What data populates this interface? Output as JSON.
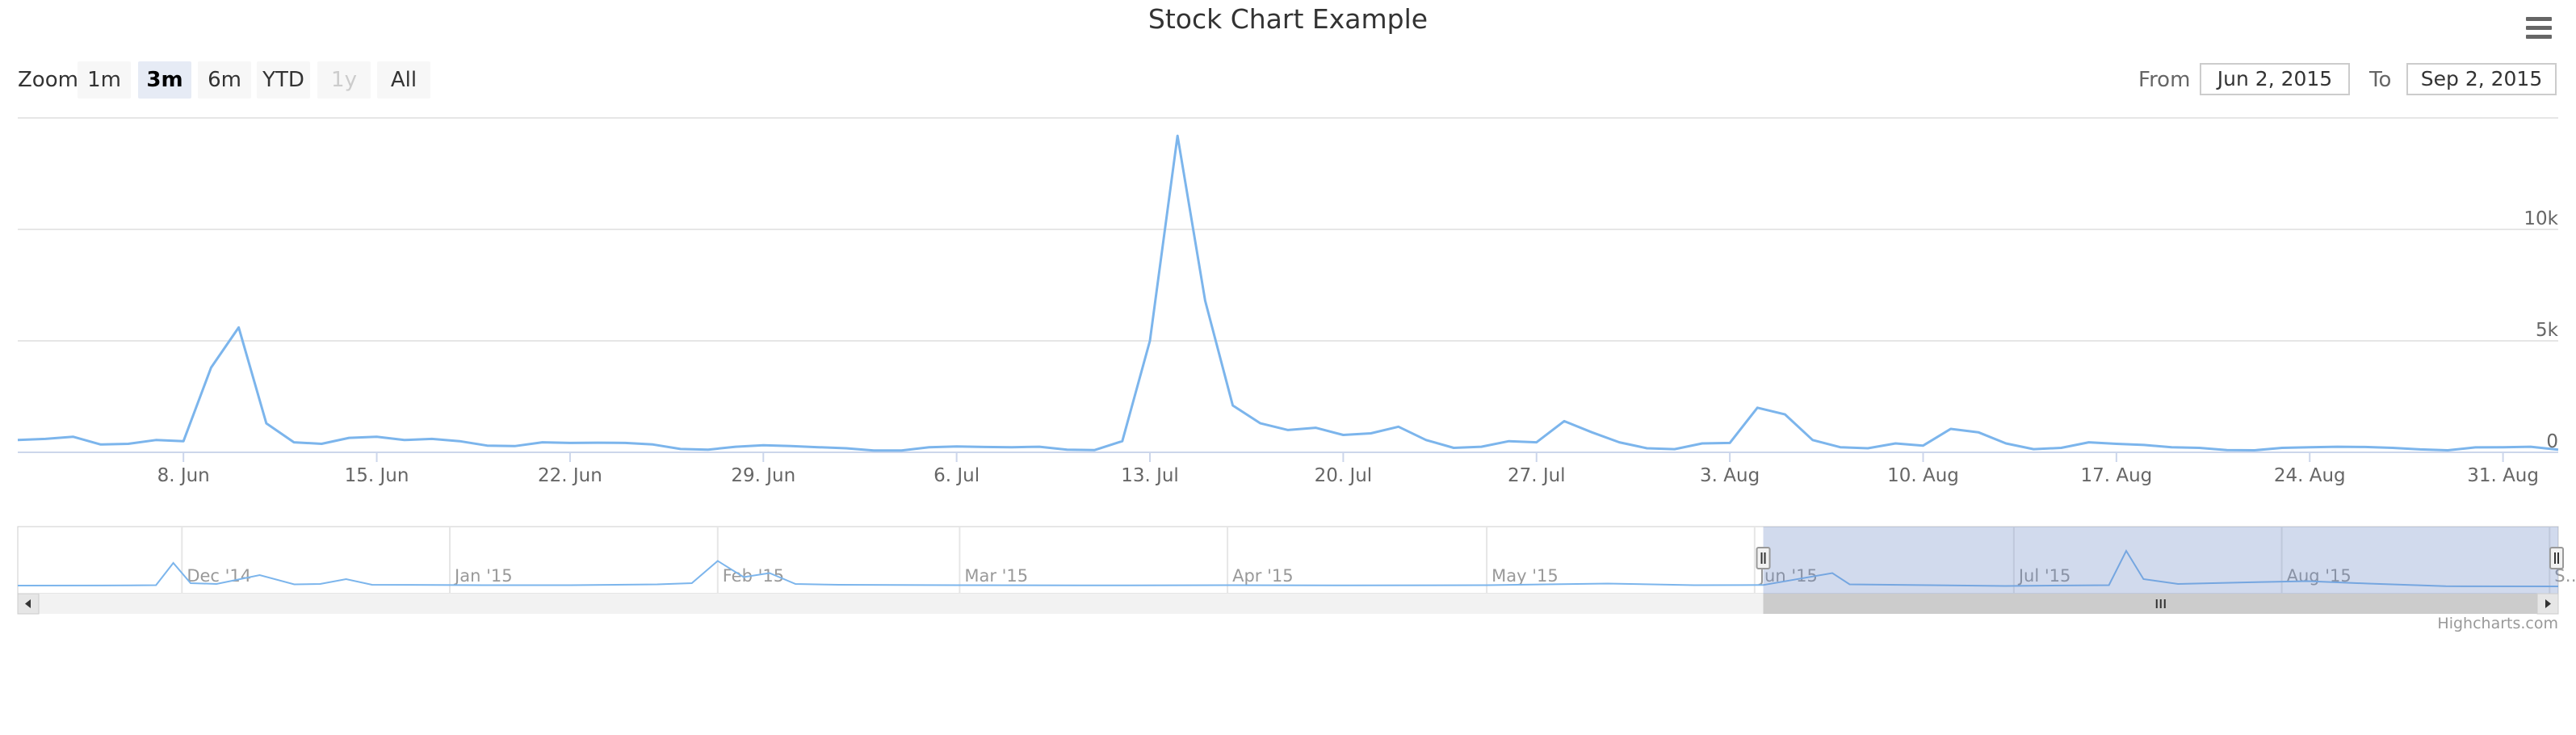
{
  "title": "Stock Chart Example",
  "range_selector": {
    "zoom_label": "Zoom",
    "buttons": [
      {
        "label": "1m",
        "state": "normal"
      },
      {
        "label": "3m",
        "state": "active"
      },
      {
        "label": "6m",
        "state": "normal"
      },
      {
        "label": "YTD",
        "state": "normal"
      },
      {
        "label": "1y",
        "state": "disabled"
      },
      {
        "label": "All",
        "state": "normal"
      }
    ],
    "from_label": "From",
    "from_value": "Jun 2, 2015",
    "to_label": "To",
    "to_value": "Sep 2, 2015"
  },
  "credits": "Highcharts.com",
  "colors": {
    "series": "#7cb5ec",
    "grid": "#e6e6e6",
    "navigator_mask": "rgba(102,133,194,0.3)",
    "scrollbar_track": "#f2f2f2",
    "scrollbar_thumb": "#cccccc"
  },
  "chart_data": {
    "type": "line",
    "title": "Stock Chart Example",
    "xlabel": "",
    "ylabel": "",
    "ylim": [
      0,
      15000
    ],
    "y_ticks": [
      0,
      5000,
      10000
    ],
    "y_tick_labels": [
      "0",
      "5k",
      "10k"
    ],
    "x_ticks": [
      {
        "date": "2015-06-08",
        "label": "8. Jun"
      },
      {
        "date": "2015-06-15",
        "label": "15. Jun"
      },
      {
        "date": "2015-06-22",
        "label": "22. Jun"
      },
      {
        "date": "2015-06-29",
        "label": "29. Jun"
      },
      {
        "date": "2015-07-06",
        "label": "6. Jul"
      },
      {
        "date": "2015-07-13",
        "label": "13. Jul"
      },
      {
        "date": "2015-07-20",
        "label": "20. Jul"
      },
      {
        "date": "2015-07-27",
        "label": "27. Jul"
      },
      {
        "date": "2015-08-03",
        "label": "3. Aug"
      },
      {
        "date": "2015-08-10",
        "label": "10. Aug"
      },
      {
        "date": "2015-08-17",
        "label": "17. Aug"
      },
      {
        "date": "2015-08-24",
        "label": "24. Aug"
      },
      {
        "date": "2015-08-31",
        "label": "31. Aug"
      }
    ],
    "xlim": [
      "2015-06-02",
      "2015-09-02"
    ],
    "grid": true,
    "legend": "none",
    "series": [
      {
        "points": [
          [
            "2015-06-02",
            550
          ],
          [
            "2015-06-03",
            600
          ],
          [
            "2015-06-04",
            700
          ],
          [
            "2015-06-05",
            350
          ],
          [
            "2015-06-06",
            380
          ],
          [
            "2015-06-07",
            550
          ],
          [
            "2015-06-08",
            500
          ],
          [
            "2015-06-09",
            3800
          ],
          [
            "2015-06-10",
            5600
          ],
          [
            "2015-06-11",
            1300
          ],
          [
            "2015-06-12",
            450
          ],
          [
            "2015-06-13",
            380
          ],
          [
            "2015-06-14",
            650
          ],
          [
            "2015-06-15",
            700
          ],
          [
            "2015-06-16",
            550
          ],
          [
            "2015-06-17",
            600
          ],
          [
            "2015-06-18",
            500
          ],
          [
            "2015-06-19",
            300
          ],
          [
            "2015-06-20",
            280
          ],
          [
            "2015-06-21",
            450
          ],
          [
            "2015-06-22",
            420
          ],
          [
            "2015-06-23",
            430
          ],
          [
            "2015-06-24",
            420
          ],
          [
            "2015-06-25",
            350
          ],
          [
            "2015-06-26",
            150
          ],
          [
            "2015-06-27",
            120
          ],
          [
            "2015-06-28",
            250
          ],
          [
            "2015-06-29",
            320
          ],
          [
            "2015-06-30",
            280
          ],
          [
            "2015-07-01",
            230
          ],
          [
            "2015-07-02",
            180
          ],
          [
            "2015-07-03",
            80
          ],
          [
            "2015-07-04",
            80
          ],
          [
            "2015-07-05",
            230
          ],
          [
            "2015-07-06",
            260
          ],
          [
            "2015-07-07",
            240
          ],
          [
            "2015-07-08",
            230
          ],
          [
            "2015-07-09",
            250
          ],
          [
            "2015-07-10",
            120
          ],
          [
            "2015-07-11",
            100
          ],
          [
            "2015-07-12",
            500
          ],
          [
            "2015-07-13",
            5000
          ],
          [
            "2015-07-14",
            14200
          ],
          [
            "2015-07-15",
            6800
          ],
          [
            "2015-07-16",
            2100
          ],
          [
            "2015-07-17",
            1300
          ],
          [
            "2015-07-18",
            1000
          ],
          [
            "2015-07-19",
            1100
          ],
          [
            "2015-07-20",
            780
          ],
          [
            "2015-07-21",
            850
          ],
          [
            "2015-07-22",
            1150
          ],
          [
            "2015-07-23",
            550
          ],
          [
            "2015-07-24",
            200
          ],
          [
            "2015-07-25",
            250
          ],
          [
            "2015-07-26",
            500
          ],
          [
            "2015-07-27",
            450
          ],
          [
            "2015-07-28",
            1400
          ],
          [
            "2015-07-29",
            900
          ],
          [
            "2015-07-30",
            450
          ],
          [
            "2015-07-31",
            180
          ],
          [
            "2015-08-01",
            140
          ],
          [
            "2015-08-02",
            400
          ],
          [
            "2015-08-03",
            420
          ],
          [
            "2015-08-04",
            2000
          ],
          [
            "2015-08-05",
            1700
          ],
          [
            "2015-08-06",
            550
          ],
          [
            "2015-08-07",
            230
          ],
          [
            "2015-08-08",
            180
          ],
          [
            "2015-08-09",
            400
          ],
          [
            "2015-08-10",
            300
          ],
          [
            "2015-08-11",
            1050
          ],
          [
            "2015-08-12",
            900
          ],
          [
            "2015-08-13",
            400
          ],
          [
            "2015-08-14",
            140
          ],
          [
            "2015-08-15",
            200
          ],
          [
            "2015-08-16",
            450
          ],
          [
            "2015-08-17",
            380
          ],
          [
            "2015-08-18",
            330
          ],
          [
            "2015-08-19",
            230
          ],
          [
            "2015-08-20",
            200
          ],
          [
            "2015-08-21",
            100
          ],
          [
            "2015-08-22",
            90
          ],
          [
            "2015-08-23",
            200
          ],
          [
            "2015-08-24",
            230
          ],
          [
            "2015-08-25",
            250
          ],
          [
            "2015-08-26",
            240
          ],
          [
            "2015-08-27",
            200
          ],
          [
            "2015-08-28",
            130
          ],
          [
            "2015-08-29",
            90
          ],
          [
            "2015-08-30",
            220
          ],
          [
            "2015-08-31",
            230
          ],
          [
            "2015-09-01",
            250
          ],
          [
            "2015-09-02",
            120
          ]
        ]
      }
    ]
  },
  "navigator": {
    "range": [
      "2014-11-12",
      "2015-09-02"
    ],
    "selected": [
      "2015-06-02",
      "2015-09-02"
    ],
    "month_labels": [
      {
        "date": "2014-12-01",
        "label": "Dec '14"
      },
      {
        "date": "2015-01-01",
        "label": "Jan '15"
      },
      {
        "date": "2015-02-01",
        "label": "Feb '15"
      },
      {
        "date": "2015-03-01",
        "label": "Mar '15"
      },
      {
        "date": "2015-04-01",
        "label": "Apr '15"
      },
      {
        "date": "2015-05-01",
        "label": "May '15"
      },
      {
        "date": "2015-06-01",
        "label": "Jun '15"
      },
      {
        "date": "2015-07-01",
        "label": "Jul '15"
      },
      {
        "date": "2015-08-01",
        "label": "Aug '15"
      },
      {
        "date": "2015-09-01",
        "label": "S…"
      }
    ],
    "overview_series": [
      [
        "2014-11-12",
        400
      ],
      [
        "2014-11-25",
        450
      ],
      [
        "2014-11-28",
        500
      ],
      [
        "2014-11-30",
        6000
      ],
      [
        "2014-12-02",
        1000
      ],
      [
        "2014-12-05",
        800
      ],
      [
        "2014-12-10",
        3000
      ],
      [
        "2014-12-14",
        700
      ],
      [
        "2014-12-17",
        800
      ],
      [
        "2014-12-20",
        2000
      ],
      [
        "2014-12-23",
        600
      ],
      [
        "2015-01-05",
        500
      ],
      [
        "2015-01-15",
        500
      ],
      [
        "2015-01-25",
        700
      ],
      [
        "2015-01-29",
        1000
      ],
      [
        "2015-02-01",
        6500
      ],
      [
        "2015-02-04",
        2500
      ],
      [
        "2015-02-07",
        3500
      ],
      [
        "2015-02-10",
        800
      ],
      [
        "2015-02-15",
        600
      ],
      [
        "2015-03-01",
        500
      ],
      [
        "2015-03-15",
        450
      ],
      [
        "2015-04-01",
        500
      ],
      [
        "2015-04-15",
        450
      ],
      [
        "2015-05-01",
        500
      ],
      [
        "2015-05-15",
        900
      ],
      [
        "2015-05-25",
        500
      ],
      [
        "2015-06-02",
        550
      ],
      [
        "2015-06-10",
        3500
      ],
      [
        "2015-06-12",
        700
      ],
      [
        "2015-06-30",
        300
      ],
      [
        "2015-07-12",
        500
      ],
      [
        "2015-07-14",
        9000
      ],
      [
        "2015-07-16",
        2000
      ],
      [
        "2015-07-20",
        800
      ],
      [
        "2015-07-28",
        1200
      ],
      [
        "2015-08-04",
        1500
      ],
      [
        "2015-08-11",
        900
      ],
      [
        "2015-08-20",
        250
      ],
      [
        "2015-09-02",
        200
      ]
    ]
  }
}
